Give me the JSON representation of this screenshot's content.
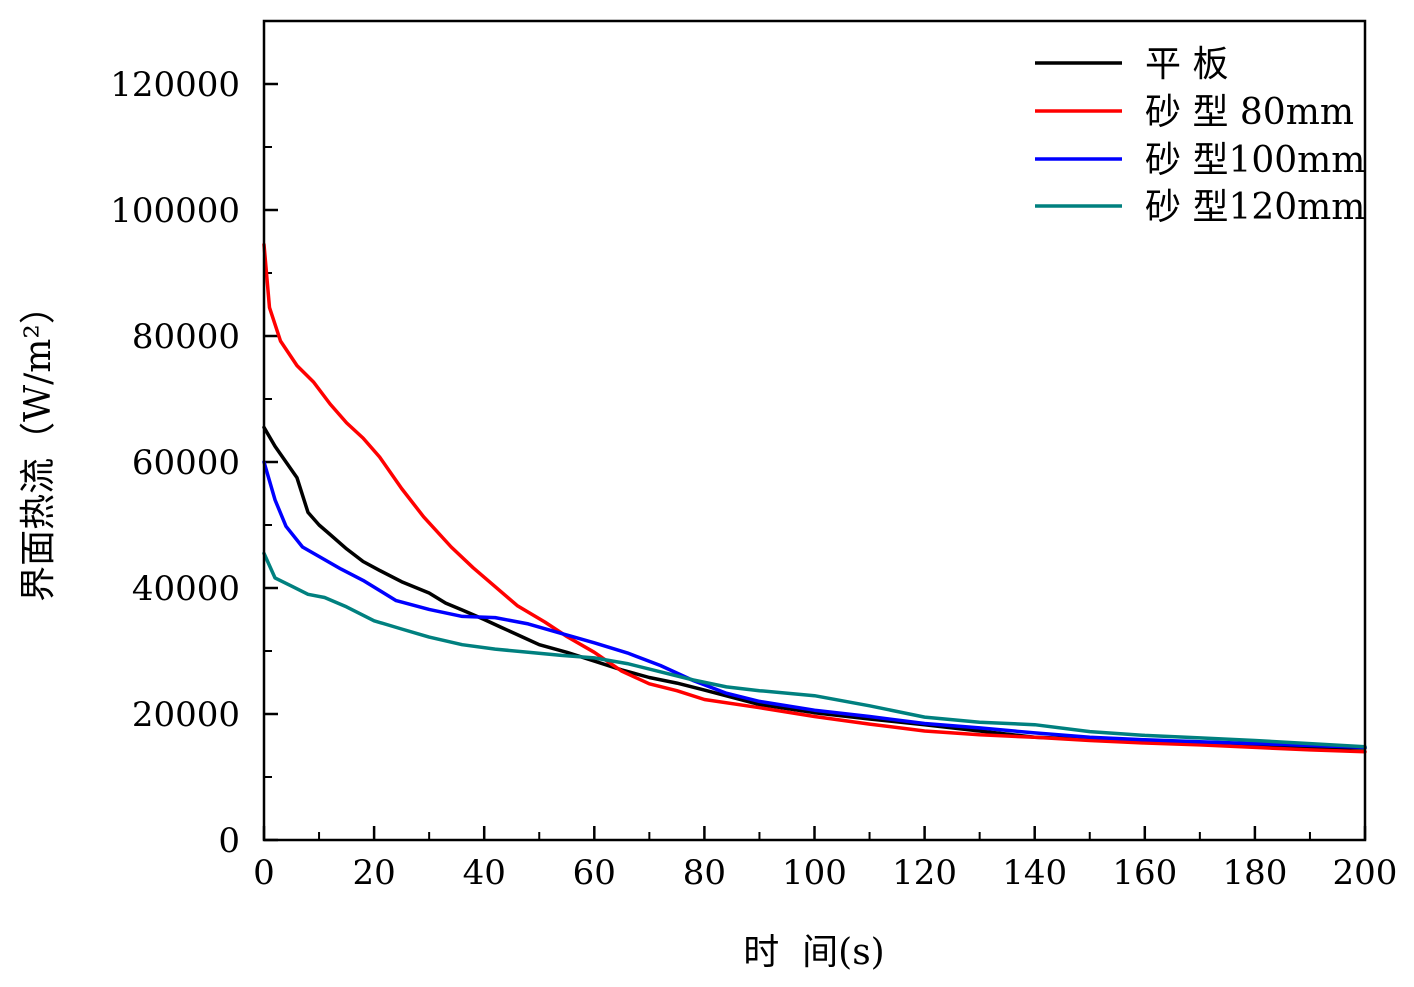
{
  "chart_data": {
    "type": "line",
    "xlabel": "时  间(s)",
    "ylabel": "界面热流（W/m²）",
    "xlim": [
      0,
      200
    ],
    "ylim": [
      0,
      130000
    ],
    "x_ticks": [
      0,
      20,
      40,
      60,
      80,
      100,
      120,
      140,
      160,
      180,
      200
    ],
    "y_ticks": [
      0,
      20000,
      40000,
      60000,
      80000,
      100000,
      120000
    ],
    "grid": false,
    "legend_position": "top-right",
    "series": [
      {
        "name": "平  板",
        "color": "#000000",
        "x": [
          0,
          2,
          4,
          6,
          8,
          10,
          12,
          15,
          18,
          21,
          25,
          30,
          33,
          36,
          40,
          43,
          47,
          50,
          55,
          60,
          65,
          70,
          75,
          80,
          90,
          100,
          110,
          120,
          130,
          140,
          150,
          160,
          170,
          180,
          190,
          200
        ],
        "y": [
          65500,
          62500,
          60000,
          57500,
          52000,
          50000,
          48500,
          46200,
          44200,
          42800,
          41000,
          39200,
          37600,
          36500,
          35000,
          33800,
          32200,
          31000,
          29800,
          28400,
          27000,
          25800,
          24900,
          23800,
          21500,
          20200,
          19200,
          18300,
          17300,
          16300,
          16000,
          15700,
          15400,
          15100,
          14700,
          14600
        ]
      },
      {
        "name": "砂  型 80mm",
        "color": "#ff0000",
        "x": [
          0,
          1,
          3,
          6,
          9,
          12,
          15,
          18,
          21,
          25,
          29,
          34,
          38,
          42,
          46,
          51,
          55,
          60,
          65,
          70,
          75,
          80,
          90,
          100,
          110,
          120,
          130,
          140,
          150,
          160,
          170,
          180,
          190,
          200
        ],
        "y": [
          94500,
          84500,
          79200,
          75300,
          72700,
          69200,
          66200,
          63800,
          60800,
          55800,
          51300,
          46500,
          43200,
          40200,
          37200,
          34600,
          32300,
          29800,
          26800,
          24800,
          23700,
          22300,
          21000,
          19600,
          18400,
          17300,
          16700,
          16300,
          15800,
          15400,
          15100,
          14700,
          14300,
          14000
        ]
      },
      {
        "name": "砂  型100mm",
        "color": "#0000ff",
        "x": [
          0,
          2,
          4,
          7,
          10,
          14,
          18,
          24,
          30,
          36,
          42,
          48,
          54,
          60,
          66,
          72,
          78,
          84,
          90,
          100,
          110,
          120,
          130,
          140,
          150,
          160,
          170,
          180,
          190,
          200
        ],
        "y": [
          60000,
          54000,
          49800,
          46500,
          45000,
          43000,
          41200,
          38000,
          36600,
          35500,
          35300,
          34300,
          32800,
          31300,
          29700,
          27700,
          25300,
          23300,
          22000,
          20600,
          19600,
          18500,
          17800,
          17000,
          16300,
          15900,
          15600,
          15300,
          15000,
          14700
        ]
      },
      {
        "name": "砂  型120mm",
        "color": "#00807f",
        "x": [
          0,
          2,
          5,
          8,
          11,
          15,
          20,
          25,
          30,
          36,
          42,
          48,
          54,
          60,
          66,
          72,
          78,
          84,
          90,
          100,
          110,
          120,
          130,
          140,
          150,
          160,
          170,
          180,
          190,
          200
        ],
        "y": [
          45500,
          41600,
          40300,
          39000,
          38500,
          37000,
          34800,
          33500,
          32200,
          31000,
          30300,
          29800,
          29300,
          28900,
          28000,
          26700,
          25400,
          24300,
          23700,
          22900,
          21300,
          19500,
          18700,
          18300,
          17200,
          16600,
          16200,
          15800,
          15300,
          14800
        ]
      }
    ]
  }
}
